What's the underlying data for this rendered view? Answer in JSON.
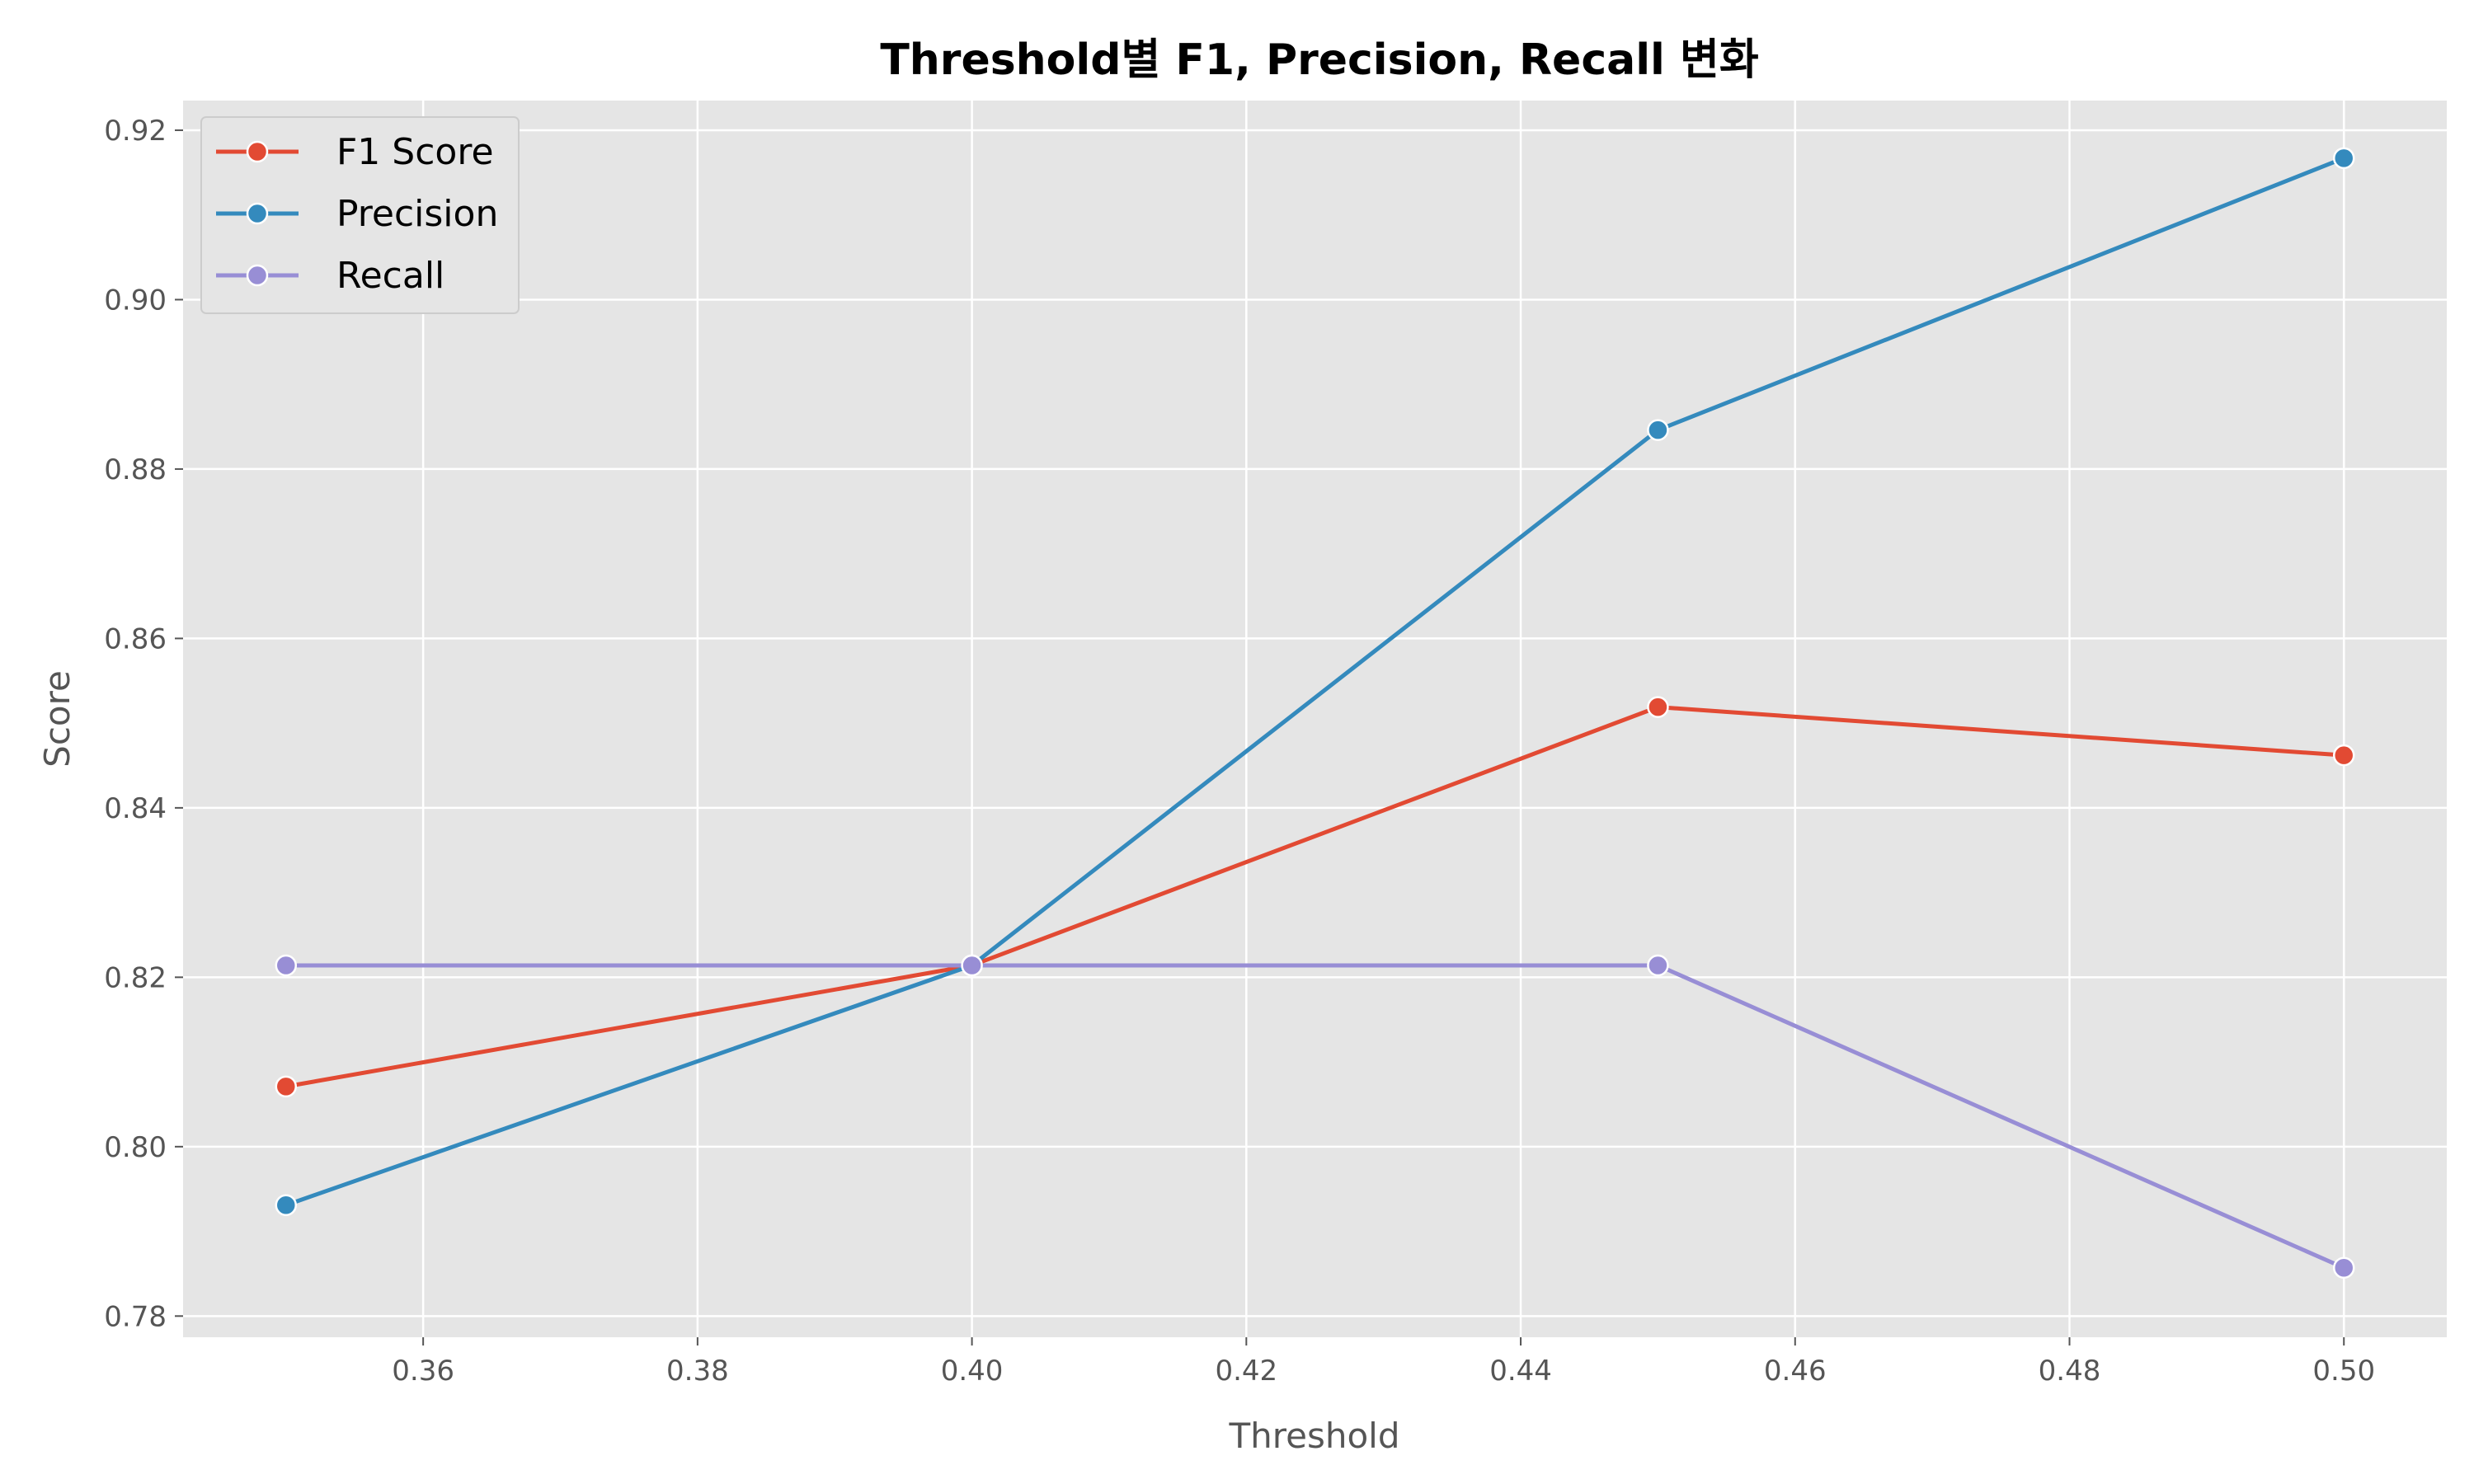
{
  "chart_data": {
    "type": "line",
    "title": "Threshold별 F1, Precision, Recall 변화",
    "xlabel": "Threshold",
    "ylabel": "Score",
    "x": [
      0.35,
      0.4,
      0.45,
      0.5
    ],
    "xlim": [
      0.3425,
      0.5075
    ],
    "ylim": [
      0.7775,
      0.9235
    ],
    "x_ticks": [
      "0.36",
      "0.38",
      "0.40",
      "0.42",
      "0.44",
      "0.46",
      "0.48",
      "0.50"
    ],
    "y_ticks": [
      "0.78",
      "0.80",
      "0.82",
      "0.84",
      "0.86",
      "0.88",
      "0.90",
      "0.92"
    ],
    "grid": true,
    "legend_position": "top-left",
    "series": [
      {
        "name": "F1 Score",
        "color": "#E24A33",
        "values": [
          0.8071,
          0.8214,
          0.8519,
          0.8462
        ]
      },
      {
        "name": "Precision",
        "color": "#348ABD",
        "values": [
          0.7931,
          0.8214,
          0.8846,
          0.9167
        ]
      },
      {
        "name": "Recall",
        "color": "#988ED5",
        "values": [
          0.8214,
          0.8214,
          0.8214,
          0.7857
        ]
      }
    ]
  }
}
